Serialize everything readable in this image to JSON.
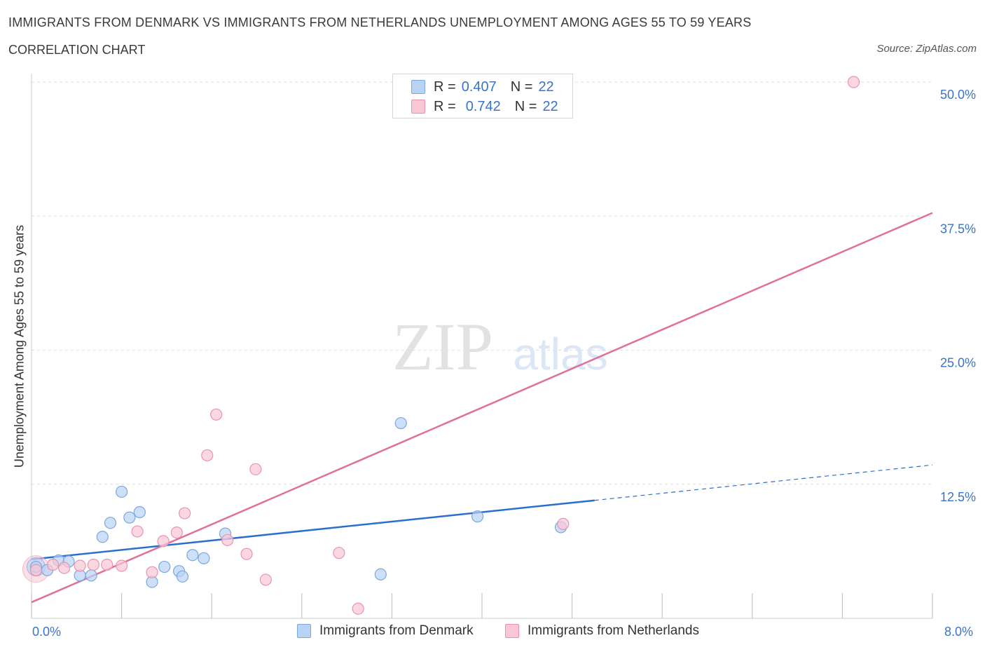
{
  "header": {
    "title": "IMMIGRANTS FROM DENMARK VS IMMIGRANTS FROM NETHERLANDS UNEMPLOYMENT AMONG AGES 55 TO 59 YEARS",
    "subtitle": "CORRELATION CHART",
    "source": "Source: ZipAtlas.com"
  },
  "watermark": {
    "zip": "ZIP",
    "atlas": "atlas"
  },
  "legend": {
    "series1": {
      "r_label": "R =",
      "r_value": "0.407",
      "n_label": "N =",
      "n_value": "22"
    },
    "series2": {
      "r_label": "R =",
      "r_value": "0.742",
      "n_label": "N =",
      "n_value": "22"
    }
  },
  "colors": {
    "denmark_fill": "#b9d3f5",
    "denmark_stroke": "#7aa7e0",
    "denmark_line": "#2a6fd0",
    "netherlands_fill": "#f9c6d6",
    "netherlands_stroke": "#ea93ae",
    "netherlands_line": "#e0709a",
    "grid": "#dddddd",
    "axis_text": "#3b73c8"
  },
  "chart_data": {
    "type": "scatter",
    "title": "IMMIGRANTS FROM DENMARK VS IMMIGRANTS FROM NETHERLANDS UNEMPLOYMENT AMONG AGES 55 TO 59 YEARS",
    "subtitle": "CORRELATION CHART",
    "xlabel": "",
    "ylabel": "Unemployment Among Ages 55 to 59 years",
    "xlim": [
      0,
      8
    ],
    "ylim": [
      0,
      50
    ],
    "x_tick_labels": [
      "0.0%",
      "8.0%"
    ],
    "y_ticks": [
      12.5,
      25.0,
      37.5,
      50.0
    ],
    "y_tick_labels": [
      "12.5%",
      "25.0%",
      "37.5%",
      "50.0%"
    ],
    "grid": true,
    "legend_position": "top-center",
    "series": [
      {
        "name": "Immigrants from Denmark",
        "r": 0.407,
        "n": 22,
        "points": [
          [
            0.04,
            4.8
          ],
          [
            0.14,
            4.5
          ],
          [
            0.24,
            5.4
          ],
          [
            0.33,
            5.3
          ],
          [
            0.43,
            4.0
          ],
          [
            0.53,
            4.0
          ],
          [
            0.63,
            7.6
          ],
          [
            0.7,
            8.9
          ],
          [
            0.8,
            11.8
          ],
          [
            0.87,
            9.4
          ],
          [
            0.96,
            9.9
          ],
          [
            1.07,
            3.4
          ],
          [
            1.18,
            4.8
          ],
          [
            1.31,
            4.4
          ],
          [
            1.34,
            3.9
          ],
          [
            1.43,
            5.9
          ],
          [
            1.53,
            5.6
          ],
          [
            1.72,
            7.9
          ],
          [
            3.1,
            4.1
          ],
          [
            3.28,
            18.2
          ],
          [
            3.96,
            9.5
          ],
          [
            4.7,
            8.5
          ]
        ],
        "trend": {
          "x": [
            0,
            5.0
          ],
          "y": [
            5.5,
            11.0
          ]
        },
        "trend_dashed": {
          "x": [
            5.0,
            8.0
          ],
          "y": [
            11.0,
            14.3
          ]
        }
      },
      {
        "name": "Immigrants from Netherlands",
        "r": 0.742,
        "n": 22,
        "points": [
          [
            0.04,
            4.5
          ],
          [
            0.19,
            5.0
          ],
          [
            0.29,
            4.7
          ],
          [
            0.43,
            4.9
          ],
          [
            0.55,
            5.0
          ],
          [
            0.67,
            5.0
          ],
          [
            0.8,
            4.9
          ],
          [
            0.94,
            8.1
          ],
          [
            1.07,
            4.3
          ],
          [
            1.17,
            7.2
          ],
          [
            1.29,
            8.0
          ],
          [
            1.36,
            9.8
          ],
          [
            1.56,
            15.2
          ],
          [
            1.64,
            19.0
          ],
          [
            1.74,
            7.3
          ],
          [
            1.91,
            6.0
          ],
          [
            1.99,
            13.9
          ],
          [
            2.08,
            3.6
          ],
          [
            2.73,
            6.1
          ],
          [
            2.9,
            0.9
          ],
          [
            4.72,
            8.8
          ],
          [
            7.3,
            50.0
          ]
        ],
        "trend": {
          "x": [
            0,
            8.0
          ],
          "y": [
            1.5,
            37.8
          ]
        }
      }
    ]
  },
  "bottom_legend": {
    "denmark_label": "Immigrants from Denmark",
    "netherlands_label": "Immigrants from Netherlands"
  }
}
